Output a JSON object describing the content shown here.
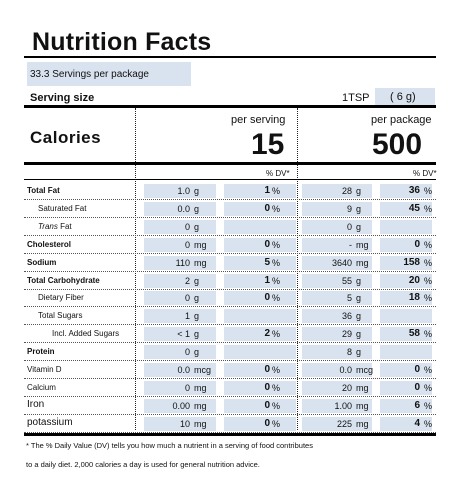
{
  "title": "Nutrition Facts",
  "servings_per_package": "33.3 Servings per package",
  "serving_size": {
    "label": "Serving size",
    "unit": "1TSP",
    "grams": "( 6 g)"
  },
  "calories": {
    "label": "Calories",
    "per_serving_label": "per serving",
    "per_package_label": "per package",
    "per_serving": "15",
    "per_package": "500",
    "dv_label_serving": "% DV*",
    "dv_label_package": "% DV*"
  },
  "nutrients": [
    {
      "name": "Total Fat",
      "bold": true,
      "indent": 0,
      "s_val": "1.0",
      "s_unit": "g",
      "s_dv": "1",
      "s_pct": "%",
      "p_val": "28",
      "p_unit": "g",
      "p_dv": "36",
      "p_pct": "%"
    },
    {
      "name": "Saturated Fat",
      "bold": false,
      "indent": 1,
      "s_val": "0.0",
      "s_unit": "g",
      "s_dv": "0",
      "s_pct": "%",
      "p_val": "9",
      "p_unit": "g",
      "p_dv": "45",
      "p_pct": "%"
    },
    {
      "name": "Trans Fat",
      "bold": false,
      "indent": 1,
      "italic_prefix": "Trans",
      "s_val": "0",
      "s_unit": "g",
      "s_dv": "",
      "s_pct": "",
      "p_val": "0",
      "p_unit": "g",
      "p_dv": "",
      "p_pct": ""
    },
    {
      "name": "Cholesterol",
      "bold": true,
      "indent": 0,
      "s_val": "0",
      "s_unit": "mg",
      "s_dv": "0",
      "s_pct": "%",
      "p_val": "-",
      "p_unit": "mg",
      "p_dv": "0",
      "p_pct": "%"
    },
    {
      "name": "Sodium",
      "bold": true,
      "indent": 0,
      "s_val": "110",
      "s_unit": "mg",
      "s_dv": "5",
      "s_pct": "%",
      "p_val": "3640",
      "p_unit": "mg",
      "p_dv": "158",
      "p_pct": "%"
    },
    {
      "name": "Total Carbohydrate",
      "bold": true,
      "indent": 0,
      "s_val": "2",
      "s_unit": "g",
      "s_dv": "1",
      "s_pct": "%",
      "p_val": "55",
      "p_unit": "g",
      "p_dv": "20",
      "p_pct": "%"
    },
    {
      "name": "Dietary Fiber",
      "bold": false,
      "indent": 1,
      "s_val": "0",
      "s_unit": "g",
      "s_dv": "0",
      "s_pct": "%",
      "p_val": "5",
      "p_unit": "g",
      "p_dv": "18",
      "p_pct": "%"
    },
    {
      "name": "Total Sugars",
      "bold": false,
      "indent": 1,
      "s_val": "1",
      "s_unit": "g",
      "s_dv": "",
      "s_pct": "",
      "p_val": "36",
      "p_unit": "g",
      "p_dv": "",
      "p_pct": ""
    },
    {
      "name": "Incl. Added Sugars",
      "bold": false,
      "indent": 2,
      "s_val": "< 1",
      "s_unit": "g",
      "s_dv": "2",
      "s_pct": "%",
      "p_val": "29",
      "p_unit": "g",
      "p_dv": "58",
      "p_pct": "%"
    },
    {
      "name": "Protein",
      "bold": true,
      "indent": 0,
      "s_val": "0",
      "s_unit": "g",
      "s_dv": "",
      "s_pct": "",
      "p_val": "8",
      "p_unit": "g",
      "p_dv": "",
      "p_pct": ""
    },
    {
      "name": "Vitamin D",
      "bold": false,
      "indent": 0,
      "s_val": "0.0",
      "s_unit": "mcg",
      "s_dv": "0",
      "s_pct": "%",
      "p_val": "0.0",
      "p_unit": "mcg",
      "p_dv": "0",
      "p_pct": "%"
    },
    {
      "name": "Calcium",
      "bold": false,
      "indent": 0,
      "s_val": "0",
      "s_unit": "mg",
      "s_dv": "0",
      "s_pct": "%",
      "p_val": "20",
      "p_unit": "mg",
      "p_dv": "0",
      "p_pct": "%"
    },
    {
      "name": "Iron",
      "bold": false,
      "indent": 0,
      "large": true,
      "s_val": "0.00",
      "s_unit": "mg",
      "s_dv": "0",
      "s_pct": "%",
      "p_val": "1.00",
      "p_unit": "mg",
      "p_dv": "6",
      "p_pct": "%"
    },
    {
      "name": "potassium",
      "bold": false,
      "indent": 0,
      "large": true,
      "s_val": "10",
      "s_unit": "mg",
      "s_dv": "0",
      "s_pct": "%",
      "p_val": "225",
      "p_unit": "mg",
      "p_dv": "4",
      "p_pct": "%"
    }
  ],
  "footnote": {
    "line1": "* The % Daily Value (DV) tells you how much a nutrient in a serving of food contributes",
    "line2": "to a daily diet. 2,000 calories a day is used for general nutrition advice."
  },
  "colors": {
    "highlight": "#d9e3ef",
    "text": "#111111",
    "rule": "#000000"
  }
}
